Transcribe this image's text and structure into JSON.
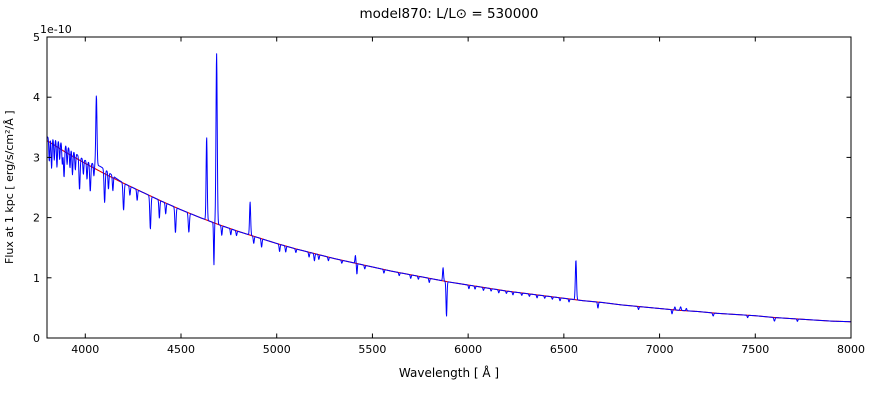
{
  "figure": {
    "title": "model870: L/L⊙ = 530000",
    "xlabel": "Wavelength [ Å ]",
    "ylabel": "Flux at 1 kpc [ erg/s/cm²/Å ]",
    "y_offset_label": "1e-10"
  },
  "chart_data": {
    "type": "line",
    "title": "model870: L/L⊙ = 530000",
    "xlabel": "Wavelength [ Å ]",
    "ylabel": "Flux at 1 kpc [ erg/s/cm²/Å ]",
    "y_offset_scale": "1e-10",
    "xlim": [
      3800,
      8000
    ],
    "ylim": [
      0,
      5
    ],
    "x_ticks": [
      4000,
      4500,
      5000,
      5500,
      6000,
      6500,
      7000,
      7500,
      8000
    ],
    "y_ticks": [
      0,
      1,
      2,
      3,
      4,
      5
    ],
    "grid": false,
    "legend": false,
    "series": [
      {
        "name": "spectrum",
        "description": "model spectrum with emission and absorption lines",
        "color": "#0000ff"
      },
      {
        "name": "continuum",
        "description": "smooth continuum fit",
        "color": "#dd0000"
      }
    ],
    "continuum": {
      "x_start": 3800,
      "x_step": 100,
      "flux": [
        3.28,
        3.08,
        2.9,
        2.73,
        2.57,
        2.42,
        2.27,
        2.13,
        2.0,
        1.88,
        1.77,
        1.67,
        1.57,
        1.48,
        1.4,
        1.32,
        1.25,
        1.18,
        1.11,
        1.05,
        0.99,
        0.93,
        0.88,
        0.83,
        0.78,
        0.74,
        0.7,
        0.66,
        0.62,
        0.59,
        0.55,
        0.52,
        0.49,
        0.46,
        0.44,
        0.41,
        0.39,
        0.37,
        0.34,
        0.32,
        0.3,
        0.28,
        0.27
      ]
    },
    "spectral_lines": [
      [
        3812,
        -0.4,
        2.5
      ],
      [
        3824,
        -0.5,
        2.5
      ],
      [
        3838,
        -0.35,
        2.5
      ],
      [
        3852,
        -0.45,
        2.5
      ],
      [
        3866,
        -0.3,
        2.5
      ],
      [
        3880,
        -0.35,
        2.5
      ],
      [
        3889,
        -0.55,
        3
      ],
      [
        3905,
        -0.3,
        2.5
      ],
      [
        3920,
        -0.32,
        2.5
      ],
      [
        3933,
        -0.4,
        2.5
      ],
      [
        3948,
        -0.28,
        2.5
      ],
      [
        3970,
        -0.55,
        3
      ],
      [
        3990,
        -0.25,
        2.5
      ],
      [
        4009,
        -0.3,
        2.5
      ],
      [
        4026,
        -0.48,
        3
      ],
      [
        4045,
        -0.2,
        2.5
      ],
      [
        4058,
        1.15,
        3
      ],
      [
        4101,
        -0.55,
        3
      ],
      [
        4121,
        -0.28,
        2.5
      ],
      [
        4144,
        -0.25,
        2.5
      ],
      [
        4200,
        -0.45,
        3
      ],
      [
        4233,
        -0.15,
        2.5
      ],
      [
        4271,
        -0.18,
        2.5
      ],
      [
        4340,
        -0.55,
        3
      ],
      [
        4387,
        -0.3,
        2.5
      ],
      [
        4420,
        -0.18,
        2.5
      ],
      [
        4471,
        -0.42,
        3
      ],
      [
        4541,
        -0.32,
        3
      ],
      [
        4634,
        1.38,
        2.8
      ],
      [
        4672,
        -0.7,
        2
      ],
      [
        4686,
        2.83,
        3.2
      ],
      [
        4713,
        -0.16,
        2.5
      ],
      [
        4760,
        -0.1,
        2.5
      ],
      [
        4790,
        -0.08,
        2.5
      ],
      [
        4861,
        0.55,
        2.8
      ],
      [
        4880,
        -0.12,
        2.5
      ],
      [
        4921,
        -0.14,
        2.5
      ],
      [
        5015,
        -0.12,
        2.5
      ],
      [
        5047,
        -0.1,
        2.5
      ],
      [
        5100,
        -0.06,
        2.5
      ],
      [
        5169,
        -0.08,
        2.5
      ],
      [
        5197,
        -0.12,
        2.5
      ],
      [
        5220,
        -0.08,
        2.5
      ],
      [
        5270,
        -0.06,
        2.5
      ],
      [
        5340,
        -0.05,
        2.5
      ],
      [
        5411,
        0.13,
        2.2
      ],
      [
        5419,
        -0.18,
        2
      ],
      [
        5460,
        -0.06,
        2.5
      ],
      [
        5560,
        -0.06,
        2.5
      ],
      [
        5640,
        -0.05,
        2.5
      ],
      [
        5700,
        -0.06,
        2.5
      ],
      [
        5740,
        -0.05,
        2.5
      ],
      [
        5797,
        -0.07,
        2.5
      ],
      [
        5869,
        0.22,
        2.5
      ],
      [
        5887,
        -0.58,
        2.5
      ],
      [
        6004,
        -0.06,
        2.5
      ],
      [
        6036,
        -0.05,
        2.5
      ],
      [
        6080,
        -0.05,
        2.5
      ],
      [
        6120,
        -0.04,
        2.5
      ],
      [
        6160,
        -0.05,
        2.5
      ],
      [
        6200,
        -0.04,
        2.5
      ],
      [
        6234,
        -0.05,
        2.5
      ],
      [
        6280,
        -0.04,
        2.5
      ],
      [
        6320,
        -0.04,
        2.5
      ],
      [
        6360,
        -0.05,
        2.5
      ],
      [
        6400,
        -0.04,
        2.5
      ],
      [
        6440,
        -0.04,
        2.5
      ],
      [
        6480,
        -0.05,
        2.5
      ],
      [
        6527,
        -0.05,
        2.5
      ],
      [
        6563,
        0.66,
        3
      ],
      [
        6678,
        -0.1,
        2.5
      ],
      [
        6890,
        -0.05,
        2.5
      ],
      [
        7065,
        -0.07,
        2.5
      ],
      [
        7080,
        0.05,
        2.5
      ],
      [
        7110,
        0.06,
        3
      ],
      [
        7140,
        0.04,
        2.5
      ],
      [
        7280,
        -0.05,
        3
      ],
      [
        7460,
        -0.04,
        2.5
      ],
      [
        7600,
        -0.06,
        3
      ],
      [
        7720,
        -0.04,
        2.5
      ],
      [
        3880,
        0.12,
        70
      ],
      [
        4080,
        0.08,
        50
      ]
    ]
  }
}
